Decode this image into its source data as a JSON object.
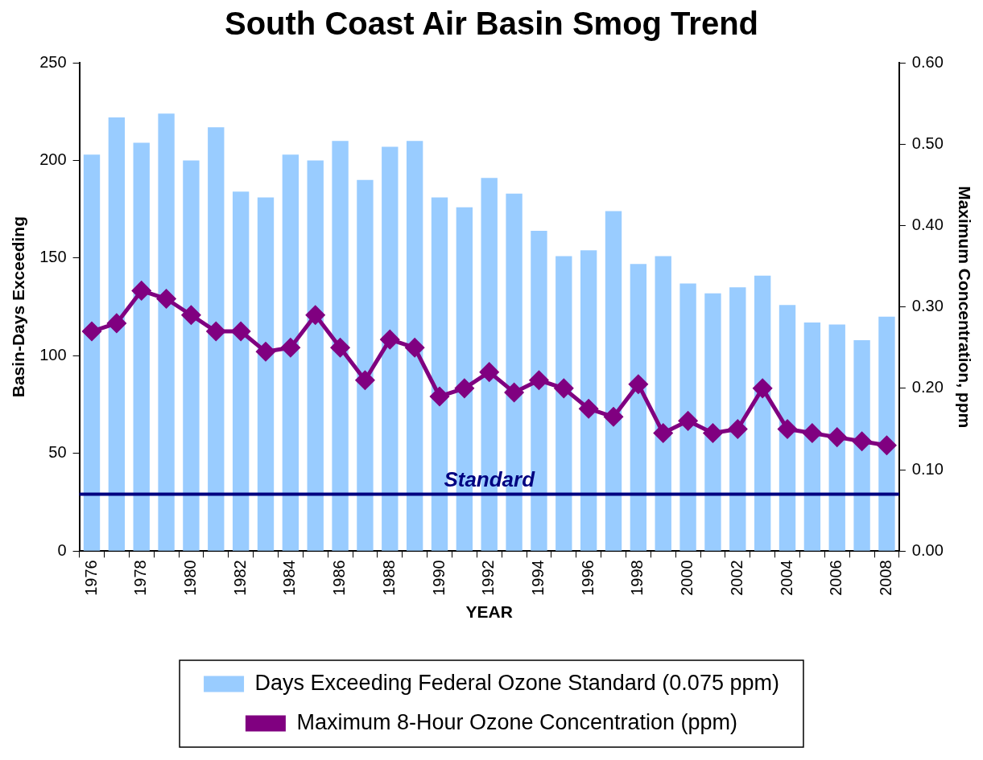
{
  "chart_data": {
    "type": "bar",
    "title": "South Coast Air Basin Smog Trend",
    "xlabel": "YEAR",
    "ylabel": "Basin-Days Exceeding",
    "y2label": "Maximum Concentration, ppm",
    "categories": [
      "1976",
      null,
      "1978",
      null,
      "1980",
      null,
      "1982",
      null,
      "1984",
      null,
      "1986",
      null,
      "1988",
      null,
      "1990",
      null,
      "1992",
      null,
      "1994",
      null,
      "1996",
      null,
      "1998",
      null,
      "2000",
      null,
      "2002",
      null,
      "2004",
      null,
      "2006",
      null,
      "2008"
    ],
    "series": [
      {
        "name": "Days Exceeding Federal Ozone Standard (0.075 ppm)",
        "color": "#99ccff",
        "values": [
          203,
          222,
          209,
          224,
          200,
          217,
          184,
          181,
          203,
          200,
          210,
          190,
          207,
          210,
          181,
          176,
          191,
          183,
          164,
          151,
          154,
          174,
          147,
          151,
          137,
          132,
          135,
          141,
          126,
          117,
          116,
          108,
          120
        ]
      },
      {
        "name": "Maximum 8-Hour Ozone Concentration (ppm)",
        "type": "line",
        "axis": "y2",
        "color": "#800080",
        "marker": "diamond",
        "values": [
          0.27,
          0.28,
          0.32,
          0.31,
          0.29,
          0.27,
          0.27,
          0.245,
          0.25,
          0.29,
          0.25,
          0.21,
          0.26,
          0.25,
          0.19,
          0.2,
          0.22,
          0.195,
          0.21,
          0.2,
          0.175,
          0.165,
          0.205,
          0.145,
          0.16,
          0.145,
          0.15,
          0.2,
          0.15,
          0.145,
          0.14,
          0.135,
          0.13
        ]
      }
    ],
    "ylim": [
      0,
      250
    ],
    "yticks": [
      0,
      50,
      100,
      150,
      200,
      250
    ],
    "y2lim": [
      0,
      0.6
    ],
    "y2ticks": [
      {
        "value": 0,
        "label": "0.00"
      },
      {
        "value": 0.1,
        "label": "0.10"
      },
      {
        "value": 0.2,
        "label": "0.20"
      },
      {
        "value": 0.3,
        "label": "0.30"
      },
      {
        "value": 0.4,
        "label": "0.40"
      },
      {
        "value": 0.5,
        "label": "0.50"
      },
      {
        "value": 0.6,
        "label": "0.60"
      }
    ],
    "ref_lines": [
      {
        "axis": "y2",
        "value": 0.07,
        "label": "Standard",
        "color": "#000080"
      }
    ],
    "grid": false,
    "legend": "bottom"
  }
}
